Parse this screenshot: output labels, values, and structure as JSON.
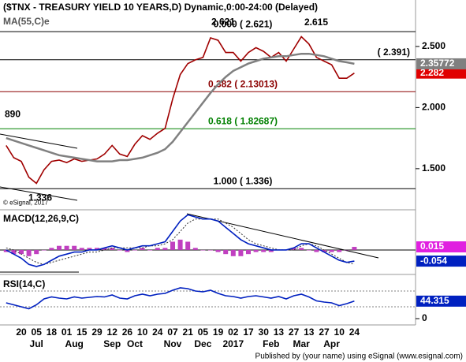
{
  "title": "($TNX - TREASURY YIELD 10 YEARS,D) Dynamic,0:00-24:00 (Delayed)",
  "footer": "Published by (your name) using eSignal (www.esignal.com)",
  "x_axis": {
    "categories": [
      null,
      null,
      "20",
      null,
      "05",
      null,
      "18",
      null,
      "01",
      null,
      "15",
      null,
      "29",
      null,
      "12",
      null,
      "26",
      null,
      "10",
      null,
      "24",
      null,
      "07",
      null,
      "21",
      null,
      "05",
      null,
      "19",
      null,
      "02",
      null,
      "17",
      null,
      "30",
      null,
      "13",
      null,
      "27",
      null,
      "13",
      null,
      "27",
      null,
      "10",
      null,
      "24"
    ],
    "months": [
      null,
      null,
      null,
      null,
      "Jul",
      null,
      null,
      null,
      null,
      "Aug",
      null,
      null,
      null,
      null,
      "Sep",
      null,
      null,
      "Oct",
      null,
      null,
      null,
      null,
      "Nov",
      null,
      null,
      null,
      "Dec",
      null,
      null,
      null,
      "2017",
      null,
      null,
      null,
      null,
      "Feb",
      null,
      null,
      null,
      "Mar",
      null,
      null,
      null,
      "Apr",
      null,
      null,
      null
    ]
  },
  "chart_data": [
    {
      "type": "line",
      "indicator": "MA(55,C)e",
      "ylim": [
        1.17,
        2.88
      ],
      "yticks": [
        {
          "value": 1.5,
          "label": "1.500"
        },
        {
          "value": 2.0,
          "label": "2.000"
        },
        {
          "value": 2.5,
          "label": "2.500"
        }
      ],
      "levels": [
        {
          "value": 2.621,
          "label": "0.000 ( 2.621)",
          "color": "#000000"
        },
        {
          "value": 2.391,
          "label": "( 2.391)",
          "color": "#000000"
        },
        {
          "value": 2.13013,
          "label": "0.382 ( 2.13013)",
          "color": "#8b0000"
        },
        {
          "value": 1.82687,
          "label": "0.618 ( 1.82687)",
          "color": "#008000"
        },
        {
          "value": 1.336,
          "label": "1.000 ( 1.336)",
          "color": "#000000"
        }
      ],
      "annotations": [
        "2.621",
        "2.615",
        "890",
        "1.336",
        "© eSignal, 2017"
      ],
      "series": [
        {
          "name": "$TNX",
          "color": "#a00000",
          "tag_color": "#e00000",
          "values": [
            1.69,
            1.59,
            1.56,
            1.43,
            1.38,
            1.49,
            1.56,
            1.57,
            1.55,
            1.58,
            1.56,
            1.57,
            1.58,
            1.62,
            1.69,
            1.62,
            1.6,
            1.7,
            1.77,
            1.74,
            1.79,
            1.83,
            2.07,
            2.27,
            2.36,
            2.39,
            2.41,
            2.57,
            2.55,
            2.45,
            2.45,
            2.38,
            2.45,
            2.49,
            2.46,
            2.41,
            2.45,
            2.38,
            2.48,
            2.58,
            2.52,
            2.41,
            2.38,
            2.35,
            2.24,
            2.24,
            2.282
          ]
        },
        {
          "name": "MA(55)",
          "color": "#808080",
          "tag_color": "#808080",
          "values": [
            1.75,
            1.73,
            1.71,
            1.69,
            1.67,
            1.65,
            1.63,
            1.61,
            1.6,
            1.59,
            1.58,
            1.57,
            1.56,
            1.56,
            1.56,
            1.57,
            1.57,
            1.58,
            1.59,
            1.61,
            1.63,
            1.66,
            1.72,
            1.8,
            1.88,
            1.96,
            2.04,
            2.12,
            2.19,
            2.25,
            2.3,
            2.33,
            2.36,
            2.38,
            2.4,
            2.41,
            2.42,
            2.42,
            2.43,
            2.44,
            2.44,
            2.43,
            2.42,
            2.4,
            2.38,
            2.37,
            2.35772
          ]
        }
      ]
    },
    {
      "type": "line",
      "indicator": "MACD(12,26,9,C)",
      "ylim": [
        -0.111,
        0.187
      ],
      "levels": [
        {
          "value": 0,
          "color": "#000000"
        }
      ],
      "series": [
        {
          "name": "Histogram",
          "type": "bar",
          "color": "#c040c0",
          "tag_color": "#e020e0",
          "values": [
            -0.01,
            -0.02,
            -0.02,
            -0.03,
            -0.02,
            0.0,
            0.01,
            0.02,
            0.02,
            0.02,
            0.01,
            0.01,
            0.01,
            0.01,
            0.01,
            0.0,
            -0.01,
            0.0,
            0.01,
            0.0,
            0.01,
            0.01,
            0.04,
            0.05,
            0.04,
            0.01,
            0.0,
            0.0,
            -0.01,
            -0.02,
            -0.03,
            -0.03,
            -0.02,
            -0.01,
            -0.01,
            -0.01,
            0.0,
            0.0,
            0.01,
            0.01,
            0.0,
            -0.01,
            -0.01,
            -0.01,
            -0.01,
            0.0,
            0.015
          ]
        },
        {
          "name": "Signal",
          "color": "#303030",
          "dash": true,
          "values": [
            0.01,
            0.0,
            -0.02,
            -0.04,
            -0.06,
            -0.07,
            -0.06,
            -0.05,
            -0.04,
            -0.03,
            -0.02,
            -0.01,
            -0.01,
            0.0,
            0.01,
            0.01,
            0.01,
            0.01,
            0.01,
            0.02,
            0.02,
            0.03,
            0.05,
            0.09,
            0.13,
            0.15,
            0.15,
            0.15,
            0.15,
            0.13,
            0.11,
            0.08,
            0.05,
            0.03,
            0.02,
            0.01,
            0.0,
            0.0,
            0.0,
            0.02,
            0.03,
            0.02,
            0.0,
            -0.02,
            -0.04,
            -0.06,
            -0.069
          ]
        },
        {
          "name": "MACD",
          "color": "#0020c0",
          "tag_color": "#0020c0",
          "value_label": "-0.054",
          "values": [
            0.0,
            -0.02,
            -0.04,
            -0.07,
            -0.08,
            -0.07,
            -0.05,
            -0.03,
            -0.02,
            -0.01,
            -0.01,
            0.0,
            0.0,
            0.01,
            0.02,
            0.01,
            0.0,
            0.01,
            0.02,
            0.02,
            0.03,
            0.04,
            0.09,
            0.14,
            0.17,
            0.16,
            0.15,
            0.15,
            0.14,
            0.11,
            0.08,
            0.05,
            0.03,
            0.02,
            0.01,
            0.0,
            0.0,
            0.0,
            0.01,
            0.03,
            0.03,
            0.01,
            -0.01,
            -0.03,
            -0.05,
            -0.06,
            -0.054
          ]
        }
      ]
    },
    {
      "type": "line",
      "indicator": "RSI(14,C)",
      "ylim": [
        -16,
        108
      ],
      "yticks": [
        0
      ],
      "levels": [
        {
          "value": 70,
          "color": "#808080",
          "dash": true
        },
        {
          "value": 30,
          "color": "#808080",
          "dash": true
        }
      ],
      "series": [
        {
          "name": "RSI",
          "color": "#0020c0",
          "tag_color": "#0020c0",
          "values": [
            40,
            35,
            30,
            25,
            35,
            50,
            55,
            52,
            50,
            55,
            52,
            54,
            56,
            55,
            60,
            52,
            50,
            58,
            62,
            58,
            62,
            64,
            72,
            78,
            76,
            70,
            68,
            72,
            64,
            58,
            56,
            52,
            56,
            58,
            55,
            52,
            56,
            50,
            58,
            62,
            55,
            45,
            42,
            40,
            33,
            38,
            44.315
          ]
        }
      ]
    }
  ]
}
